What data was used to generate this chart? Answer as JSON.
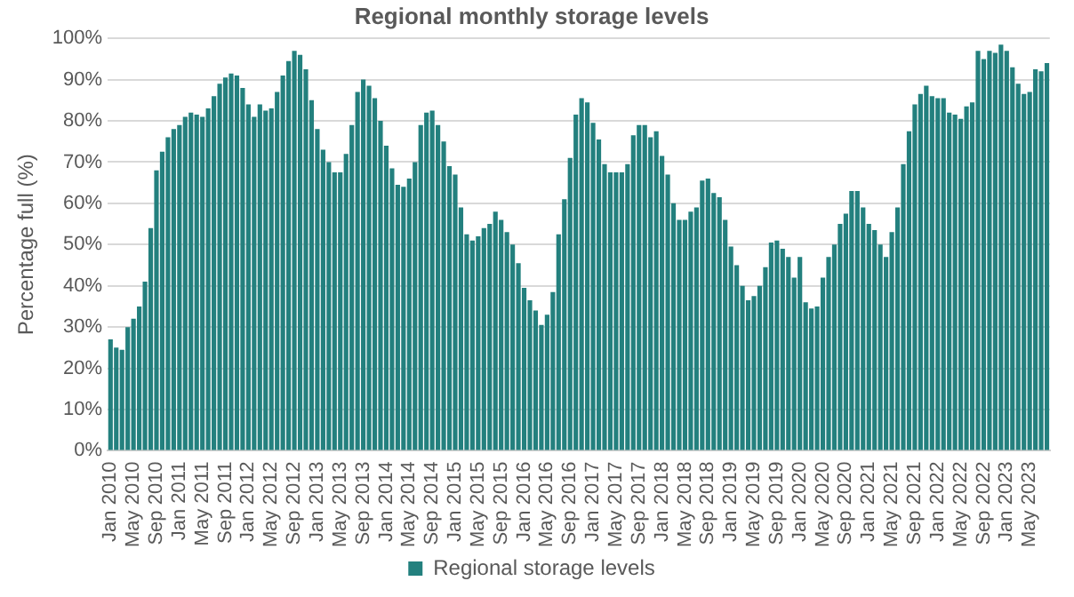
{
  "chart_data": {
    "type": "bar",
    "title": "Regional monthly storage levels",
    "ylabel": "Percentage full (%)",
    "categories": [
      "Jan 2010",
      null,
      null,
      null,
      "May 2010",
      null,
      null,
      null,
      "Sep 2010",
      null,
      null,
      null,
      "Jan 2011",
      null,
      null,
      null,
      "May 2011",
      null,
      null,
      null,
      "Sep 2011",
      null,
      null,
      null,
      "Jan 2012",
      null,
      null,
      null,
      "May 2012",
      null,
      null,
      null,
      "Sep 2012",
      null,
      null,
      null,
      "Jan 2013",
      null,
      null,
      null,
      "May 2013",
      null,
      null,
      null,
      "Sep 2013",
      null,
      null,
      null,
      "Jan 2014",
      null,
      null,
      null,
      "May 2014",
      null,
      null,
      null,
      "Sep 2014",
      null,
      null,
      null,
      "Jan 2015",
      null,
      null,
      null,
      "May 2015",
      null,
      null,
      null,
      "Sep 2015",
      null,
      null,
      null,
      "Jan 2016",
      null,
      null,
      null,
      "May 2016",
      null,
      null,
      null,
      "Sep 2016",
      null,
      null,
      null,
      "Jan 2017",
      null,
      null,
      null,
      "May 2017",
      null,
      null,
      null,
      "Sep 2017",
      null,
      null,
      null,
      "Jan 2018",
      null,
      null,
      null,
      "May 2018",
      null,
      null,
      null,
      "Sep 2018",
      null,
      null,
      null,
      "Jan 2019",
      null,
      null,
      null,
      "May 2019",
      null,
      null,
      null,
      "Sep 2019",
      null,
      null,
      null,
      "Jan 2020",
      null,
      null,
      null,
      "May 2020",
      null,
      null,
      null,
      "Sep 2020",
      null,
      null,
      null,
      "Jan 2021",
      null,
      null,
      null,
      "May 2021",
      null,
      null,
      null,
      "Sep 2021",
      null,
      null,
      null,
      "Jan 2022",
      null,
      null,
      null,
      "May 2022",
      null,
      null,
      null,
      "Sep 2022",
      null,
      null,
      null,
      "Jan 2023",
      null,
      null,
      null,
      "May 2023",
      null,
      null,
      null
    ],
    "series": [
      {
        "name": "Regional storage levels",
        "color": "#23807e",
        "values": [
          27,
          25,
          24.5,
          30,
          32,
          35,
          41,
          54,
          68,
          72.5,
          76,
          78,
          79,
          81,
          82,
          81.5,
          81,
          83,
          86,
          89,
          90.5,
          91.5,
          91,
          88,
          84,
          81,
          84,
          82.5,
          83,
          87,
          91,
          94.5,
          97,
          96,
          92.5,
          85,
          78,
          73,
          70,
          67.5,
          67.5,
          72,
          79,
          87,
          90,
          88.5,
          85.5,
          80,
          74,
          68.5,
          64.5,
          64,
          66,
          70,
          79,
          82,
          82.5,
          79,
          75,
          69,
          67,
          59,
          52.5,
          51,
          52,
          54,
          55,
          58,
          56,
          53,
          50,
          45.5,
          39.5,
          36.5,
          34,
          30.5,
          33,
          38.5,
          52.5,
          61,
          71,
          81.5,
          85.5,
          84.5,
          79.5,
          75.5,
          69.5,
          67.5,
          67.5,
          67.5,
          69.5,
          76.5,
          79,
          79,
          76,
          77.5,
          71.5,
          67,
          60,
          56,
          56,
          58,
          59,
          65.5,
          66,
          62.5,
          61.5,
          56,
          49.5,
          45,
          40,
          36.5,
          37.5,
          40,
          44.5,
          50.5,
          51,
          49,
          47,
          42,
          47,
          36,
          34.5,
          35,
          42,
          47,
          50,
          55,
          57.5,
          63,
          63,
          59,
          55,
          53.5,
          50,
          47,
          53,
          59,
          69.5,
          77.5,
          84,
          86.5,
          88.5,
          86,
          85.5,
          85.5,
          82,
          81.5,
          80.5,
          83.5,
          84.5,
          97,
          95,
          97,
          96.5,
          98.5,
          97,
          93,
          89,
          86.5,
          87,
          92.5,
          92,
          94
        ]
      }
    ],
    "ylim": [
      0,
      100
    ],
    "yticks": [
      {
        "value": 0,
        "label": "0%"
      },
      {
        "value": 10,
        "label": "10%"
      },
      {
        "value": 20,
        "label": "20%"
      },
      {
        "value": 30,
        "label": "30%"
      },
      {
        "value": 40,
        "label": "40%"
      },
      {
        "value": 50,
        "label": "50%"
      },
      {
        "value": 60,
        "label": "60%"
      },
      {
        "value": 70,
        "label": "70%"
      },
      {
        "value": 80,
        "label": "80%"
      },
      {
        "value": 90,
        "label": "90%"
      },
      {
        "value": 100,
        "label": "100%"
      }
    ],
    "grid": "y",
    "legend": "bottom"
  }
}
